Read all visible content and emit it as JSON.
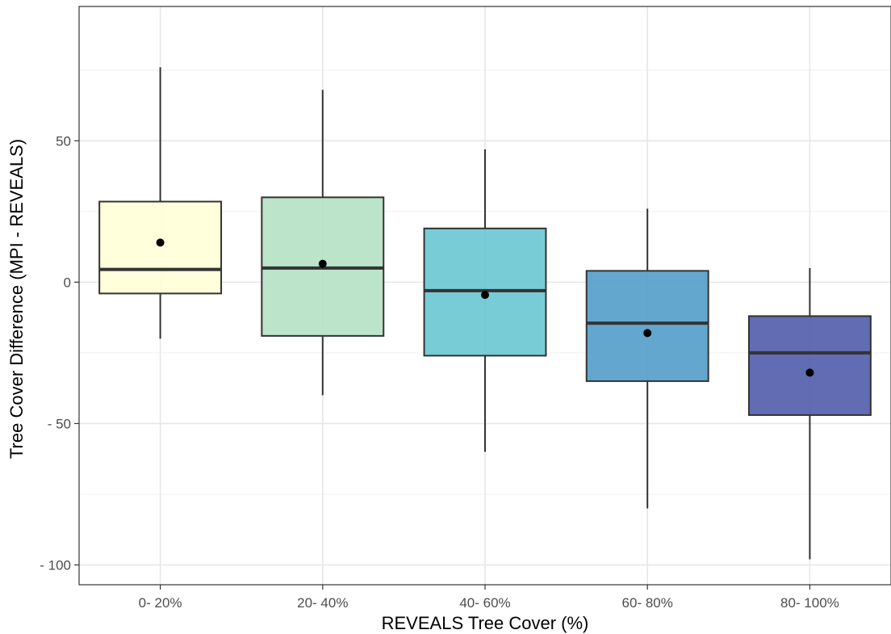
{
  "chart_data": {
    "type": "box",
    "xlabel": "REVEALS Tree Cover (%)",
    "ylabel": "Tree Cover Difference (MPI -  REVEALS)",
    "ylim": [
      -107,
      97.5
    ],
    "yticks": [
      -100,
      -50,
      0,
      50
    ],
    "ytick_labels": [
      "- 100",
      "- 50",
      "0",
      "50"
    ],
    "grid": true,
    "legend": "none",
    "categories": [
      "0- 20%",
      "20- 40%",
      "40- 60%",
      "60- 80%",
      "80- 100%"
    ],
    "boxes": [
      {
        "category": "0- 20%",
        "whisker_low": -20,
        "q1": -4,
        "median": 4.5,
        "q3": 28.5,
        "whisker_high": 76,
        "mean": 14,
        "color": "#ffffd9"
      },
      {
        "category": "20- 40%",
        "whisker_low": -40,
        "q1": -19,
        "median": 5,
        "q3": 30,
        "whisker_high": 68,
        "mean": 6.5,
        "color": "#b6e2c6"
      },
      {
        "category": "40- 60%",
        "whisker_low": -60,
        "q1": -26,
        "median": -3,
        "q3": 19,
        "whisker_high": 47,
        "mean": -4.5,
        "color": "#6bc8d2"
      },
      {
        "category": "60- 80%",
        "whisker_low": -80,
        "q1": -35,
        "median": -14.5,
        "q3": 4,
        "whisker_high": 26,
        "mean": -18,
        "color": "#569fca"
      },
      {
        "category": "80- 100%",
        "whisker_low": -98,
        "q1": -47,
        "median": -25,
        "q3": -12,
        "whisker_high": 5,
        "mean": -32,
        "color": "#545fac"
      }
    ]
  }
}
